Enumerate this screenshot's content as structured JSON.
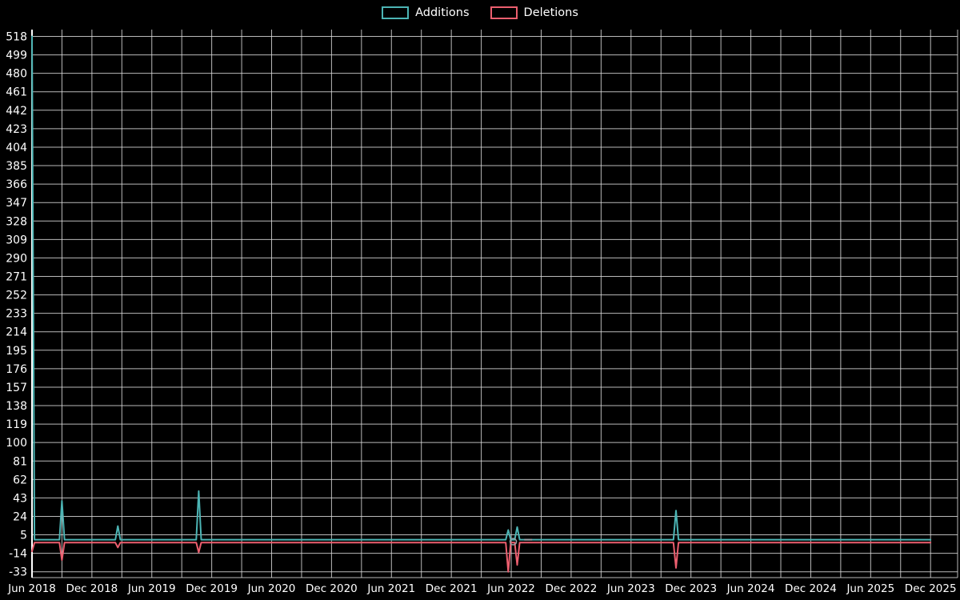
{
  "legend": {
    "additions": "Additions",
    "deletions": "Deletions"
  },
  "chart_data": {
    "type": "line",
    "title": "",
    "xlabel": "",
    "ylabel": "",
    "background": "#000000",
    "axis_color": "#ffffff",
    "grid_color": "#d9d9d9",
    "grid": true,
    "legend_position": "top-center",
    "ylim": [
      -39,
      525
    ],
    "y_ticks": [
      518,
      499,
      480,
      461,
      442,
      423,
      404,
      385,
      366,
      347,
      328,
      309,
      290,
      271,
      252,
      233,
      214,
      195,
      176,
      157,
      138,
      119,
      100,
      81,
      62,
      43,
      24,
      5,
      -14,
      -33
    ],
    "x_axis": {
      "unit": "months since Jun 2018",
      "gridline_every_months": 3,
      "ticks": [
        {
          "label": "Jun 2018",
          "m": 0
        },
        {
          "label": "Dec 2018",
          "m": 6
        },
        {
          "label": "Jun 2019",
          "m": 12
        },
        {
          "label": "Dec 2019",
          "m": 18
        },
        {
          "label": "Jun 2020",
          "m": 24
        },
        {
          "label": "Dec 2020",
          "m": 30
        },
        {
          "label": "Jun 2021",
          "m": 36
        },
        {
          "label": "Dec 2021",
          "m": 42
        },
        {
          "label": "Jun 2022",
          "m": 48
        },
        {
          "label": "Dec 2022",
          "m": 54
        },
        {
          "label": "Jun 2023",
          "m": 60
        },
        {
          "label": "Dec 2023",
          "m": 66
        },
        {
          "label": "Jun 2024",
          "m": 72
        },
        {
          "label": "Dec 2024",
          "m": 78
        },
        {
          "label": "Jun 2025",
          "m": 84
        },
        {
          "label": "Dec 2025",
          "m": 90
        }
      ]
    },
    "series": [
      {
        "name": "Additions",
        "color": "#4cb4b4",
        "points": [
          [
            0,
            518
          ],
          [
            0.25,
            0
          ],
          [
            2.75,
            0
          ],
          [
            3,
            40
          ],
          [
            3.25,
            0
          ],
          [
            8.35,
            0
          ],
          [
            8.6,
            14
          ],
          [
            8.85,
            0
          ],
          [
            16.45,
            0
          ],
          [
            16.7,
            50
          ],
          [
            16.95,
            0
          ],
          [
            47.45,
            0
          ],
          [
            47.7,
            10
          ],
          [
            47.95,
            0
          ],
          [
            48.35,
            0
          ],
          [
            48.6,
            13
          ],
          [
            48.85,
            0
          ],
          [
            64.25,
            0
          ],
          [
            64.5,
            30
          ],
          [
            64.75,
            0
          ],
          [
            90,
            0
          ]
        ]
      },
      {
        "name": "Deletions",
        "color": "#ec5f6f",
        "points": [
          [
            0,
            -12
          ],
          [
            0.25,
            -3
          ],
          [
            2.75,
            -3
          ],
          [
            3,
            -21
          ],
          [
            3.25,
            -3
          ],
          [
            8.35,
            -3
          ],
          [
            8.6,
            -8
          ],
          [
            8.85,
            -3
          ],
          [
            16.45,
            -3
          ],
          [
            16.7,
            -13
          ],
          [
            16.95,
            -3
          ],
          [
            47.45,
            -3
          ],
          [
            47.7,
            -33
          ],
          [
            47.95,
            -3
          ],
          [
            48.35,
            -3
          ],
          [
            48.6,
            -26
          ],
          [
            48.85,
            -3
          ],
          [
            64.25,
            -3
          ],
          [
            64.5,
            -29
          ],
          [
            64.75,
            -3
          ],
          [
            90,
            -3
          ]
        ]
      }
    ],
    "annotations": {
      "color": "#9aa0a6",
      "hover_marker": {
        "m": 48.2,
        "value": -2
      },
      "hover_dash": {
        "m1": 49.3,
        "m2": 50.1,
        "value": 0
      }
    }
  }
}
